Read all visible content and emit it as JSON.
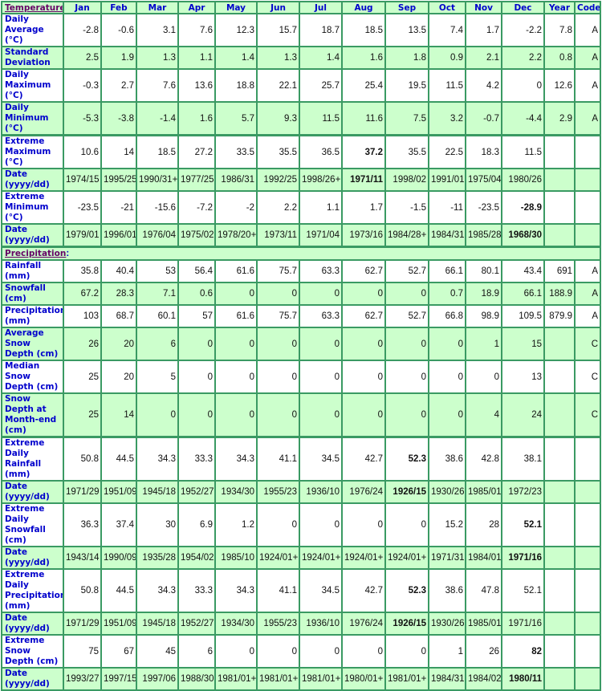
{
  "temperature_label": "Temperature",
  "precipitation_label": "Precipitation",
  "colon": ":",
  "columns": [
    "Jan",
    "Feb",
    "Mar",
    "Apr",
    "May",
    "Jun",
    "Jul",
    "Aug",
    "Sep",
    "Oct",
    "Nov",
    "Dec",
    "Year",
    "Code"
  ],
  "colors": {
    "header_bg": "#ccffcc",
    "border": "#3a9a63",
    "label": "#0000cc",
    "section": "#660066"
  },
  "temperature_rows": [
    {
      "label": "Daily Average (°C)",
      "values": [
        "-2.8",
        "-0.6",
        "3.1",
        "7.6",
        "12.3",
        "15.7",
        "18.7",
        "18.5",
        "13.5",
        "7.4",
        "1.7",
        "-2.2",
        "7.8",
        "A"
      ],
      "bold": null
    },
    {
      "label": "Standard Deviation",
      "values": [
        "2.5",
        "1.9",
        "1.3",
        "1.1",
        "1.4",
        "1.3",
        "1.4",
        "1.6",
        "1.8",
        "0.9",
        "2.1",
        "2.2",
        "0.8",
        "A"
      ],
      "bold": null
    },
    {
      "label": "Daily Maximum (°C)",
      "values": [
        "-0.3",
        "2.7",
        "7.6",
        "13.6",
        "18.8",
        "22.1",
        "25.7",
        "25.4",
        "19.5",
        "11.5",
        "4.2",
        "0",
        "12.6",
        "A"
      ],
      "bold": null
    },
    {
      "label": "Daily Minimum (°C)",
      "values": [
        "-5.3",
        "-3.8",
        "-1.4",
        "1.6",
        "5.7",
        "9.3",
        "11.5",
        "11.6",
        "7.5",
        "3.2",
        "-0.7",
        "-4.4",
        "2.9",
        "A"
      ],
      "bold": null
    },
    {
      "label": "Extreme Maximum (°C)",
      "values": [
        "10.6",
        "14",
        "18.5",
        "27.2",
        "33.5",
        "35.5",
        "36.5",
        "37.2",
        "35.5",
        "22.5",
        "18.3",
        "11.5",
        "",
        ""
      ],
      "bold": 7,
      "sep": true
    },
    {
      "label": "Date (yyyy/dd)",
      "values": [
        "1974/15",
        "1995/25",
        "1990/31+",
        "1977/25",
        "1986/31",
        "1992/25",
        "1998/26+",
        "1971/11",
        "1998/02",
        "1991/01",
        "1975/04",
        "1980/26",
        "",
        ""
      ],
      "bold": 7
    },
    {
      "label": "Extreme Minimum (°C)",
      "values": [
        "-23.5",
        "-21",
        "-15.6",
        "-7.2",
        "-2",
        "2.2",
        "1.1",
        "1.7",
        "-1.5",
        "-11",
        "-23.5",
        "-28.9",
        "",
        ""
      ],
      "bold": 11
    },
    {
      "label": "Date (yyyy/dd)",
      "values": [
        "1979/01",
        "1996/01",
        "1976/04",
        "1975/02",
        "1978/20+",
        "1973/11",
        "1971/04",
        "1973/16",
        "1984/28+",
        "1984/31",
        "1985/28",
        "1968/30",
        "",
        ""
      ],
      "bold": 11
    }
  ],
  "precipitation_rows": [
    {
      "label": "Rainfall (mm)",
      "values": [
        "35.8",
        "40.4",
        "53",
        "56.4",
        "61.6",
        "75.7",
        "63.3",
        "62.7",
        "52.7",
        "66.1",
        "80.1",
        "43.4",
        "691",
        "A"
      ],
      "bold": null
    },
    {
      "label": "Snowfall (cm)",
      "values": [
        "67.2",
        "28.3",
        "7.1",
        "0.6",
        "0",
        "0",
        "0",
        "0",
        "0",
        "0.7",
        "18.9",
        "66.1",
        "188.9",
        "A"
      ],
      "bold": null
    },
    {
      "label": "Precipitation (mm)",
      "values": [
        "103",
        "68.7",
        "60.1",
        "57",
        "61.6",
        "75.7",
        "63.3",
        "62.7",
        "52.7",
        "66.8",
        "98.9",
        "109.5",
        "879.9",
        "A"
      ],
      "bold": null
    },
    {
      "label": "Average Snow Depth (cm)",
      "values": [
        "26",
        "20",
        "6",
        "0",
        "0",
        "0",
        "0",
        "0",
        "0",
        "0",
        "1",
        "15",
        "",
        "C"
      ],
      "bold": null
    },
    {
      "label": "Median Snow Depth (cm)",
      "values": [
        "25",
        "20",
        "5",
        "0",
        "0",
        "0",
        "0",
        "0",
        "0",
        "0",
        "0",
        "13",
        "",
        "C"
      ],
      "bold": null
    },
    {
      "label": "Snow Depth at Month-end (cm)",
      "values": [
        "25",
        "14",
        "0",
        "0",
        "0",
        "0",
        "0",
        "0",
        "0",
        "0",
        "4",
        "24",
        "",
        "C"
      ],
      "bold": null
    },
    {
      "label": "Extreme Daily Rainfall (mm)",
      "values": [
        "50.8",
        "44.5",
        "34.3",
        "33.3",
        "34.3",
        "41.1",
        "34.5",
        "42.7",
        "52.3",
        "38.6",
        "42.8",
        "38.1",
        "",
        ""
      ],
      "bold": 8,
      "sep": true
    },
    {
      "label": "Date (yyyy/dd)",
      "values": [
        "1971/29",
        "1951/09",
        "1945/18",
        "1952/27",
        "1934/30",
        "1955/23",
        "1936/10",
        "1976/24",
        "1926/15",
        "1930/26",
        "1985/01",
        "1972/23",
        "",
        ""
      ],
      "bold": 8
    },
    {
      "label": "Extreme Daily Snowfall (cm)",
      "values": [
        "36.3",
        "37.4",
        "30",
        "6.9",
        "1.2",
        "0",
        "0",
        "0",
        "0",
        "15.2",
        "28",
        "52.1",
        "",
        ""
      ],
      "bold": 11
    },
    {
      "label": "Date (yyyy/dd)",
      "values": [
        "1943/14",
        "1990/09",
        "1935/28",
        "1954/02",
        "1985/10",
        "1924/01+",
        "1924/01+",
        "1924/01+",
        "1924/01+",
        "1971/31",
        "1984/01",
        "1971/16",
        "",
        ""
      ],
      "bold": 11
    },
    {
      "label": "Extreme Daily Precipitation (mm)",
      "values": [
        "50.8",
        "44.5",
        "34.3",
        "33.3",
        "34.3",
        "41.1",
        "34.5",
        "42.7",
        "52.3",
        "38.6",
        "47.8",
        "52.1",
        "",
        ""
      ],
      "bold": 8
    },
    {
      "label": "Date (yyyy/dd)",
      "values": [
        "1971/29",
        "1951/09",
        "1945/18",
        "1952/27",
        "1934/30",
        "1955/23",
        "1936/10",
        "1976/24",
        "1926/15",
        "1930/26",
        "1985/01",
        "1971/16",
        "",
        ""
      ],
      "bold": 8
    },
    {
      "label": "Extreme Snow Depth (cm)",
      "values": [
        "75",
        "67",
        "45",
        "6",
        "0",
        "0",
        "0",
        "0",
        "0",
        "1",
        "26",
        "82",
        "",
        ""
      ],
      "bold": 11
    },
    {
      "label": "Date (yyyy/dd)",
      "values": [
        "1993/27",
        "1997/15",
        "1997/06",
        "1988/30",
        "1981/01+",
        "1981/01+",
        "1981/01+",
        "1980/01+",
        "1981/01+",
        "1984/31",
        "1984/02",
        "1980/11",
        "",
        ""
      ],
      "bold": 11
    }
  ]
}
